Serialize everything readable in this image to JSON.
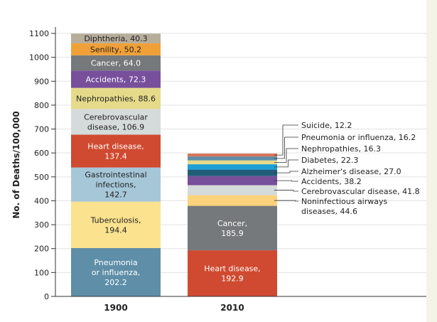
{
  "chart_data": {
    "type": "bar",
    "stacked": true,
    "title": "",
    "xlabel": "",
    "ylabel": "No. of Deaths/100,000",
    "ylim": [
      0,
      1100
    ],
    "yticks": [
      0,
      100,
      200,
      300,
      400,
      500,
      600,
      700,
      800,
      900,
      1000,
      1100
    ],
    "grid": true,
    "categories": [
      "1900",
      "2010"
    ],
    "stacks": [
      {
        "category": "1900",
        "segments": [
          {
            "name": "Pneumonia or influenza",
            "value": 202.2,
            "label": "Pneumonia or influenza, 202.2",
            "color": "#5e8ea8"
          },
          {
            "name": "Tuberculosis",
            "value": 194.4,
            "label": "Tuberculosis, 194.4",
            "color": "#fbe28f"
          },
          {
            "name": "Gastrointestinal infections",
            "value": 142.7,
            "label": "Gastrointestinal infections, 142.7",
            "color": "#a6c7d8"
          },
          {
            "name": "Heart disease",
            "value": 137.4,
            "label": "Heart disease, 137.4",
            "color": "#cf4a30"
          },
          {
            "name": "Cerebrovascular disease",
            "value": 106.9,
            "label": "Cerebrovascular disease, 106.9",
            "color": "#d5dadb"
          },
          {
            "name": "Nephropathies",
            "value": 88.6,
            "label": "Nephropathies, 88.6",
            "color": "#e5da8a"
          },
          {
            "name": "Accidents",
            "value": 72.3,
            "label": "Accidents, 72.3",
            "color": "#774f9b"
          },
          {
            "name": "Cancer",
            "value": 64.0,
            "label": "Cancer, 64.0",
            "color": "#76797b"
          },
          {
            "name": "Senility",
            "value": 50.2,
            "label": "Senility, 50.2",
            "color": "#f0a038"
          },
          {
            "name": "Diphtheria",
            "value": 40.3,
            "label": "Diphtheria, 40.3",
            "color": "#b7ad9b"
          }
        ]
      },
      {
        "category": "2010",
        "segments": [
          {
            "name": "Heart disease",
            "value": 192.9,
            "label": "Heart disease, 192.9",
            "color": "#cf4a30"
          },
          {
            "name": "Cancer",
            "value": 185.9,
            "label": "Cancer, 185.9",
            "color": "#76797b"
          },
          {
            "name": "Noninfectious airways diseases",
            "value": 44.6,
            "label": "Noninfectious airways diseases, 44.6",
            "color": "#fcd27a"
          },
          {
            "name": "Cerebrovascular disease",
            "value": 41.8,
            "label": "Cerebrovascular disease, 41.8",
            "color": "#d5dadb"
          },
          {
            "name": "Accidents",
            "value": 38.2,
            "label": "Accidents, 38.2",
            "color": "#774f9b"
          },
          {
            "name": "Alzheimer's disease",
            "value": 27.0,
            "label": "Alzheimer's disease, 27.0",
            "color": "#225d78"
          },
          {
            "name": "Diabetes",
            "value": 22.3,
            "label": "Diabetes, 22.3",
            "color": "#1e9fd6"
          },
          {
            "name": "Nephropathies",
            "value": 16.3,
            "label": "Nephropathies, 16.3",
            "color": "#e5da8a"
          },
          {
            "name": "Pneumonia or influenza",
            "value": 16.2,
            "label": "Pneumonia or influenza, 16.2",
            "color": "#5e8ea8"
          },
          {
            "name": "Suicide",
            "value": 12.2,
            "label": "Suicide, 12.2",
            "color": "#d8735a"
          }
        ]
      }
    ]
  }
}
